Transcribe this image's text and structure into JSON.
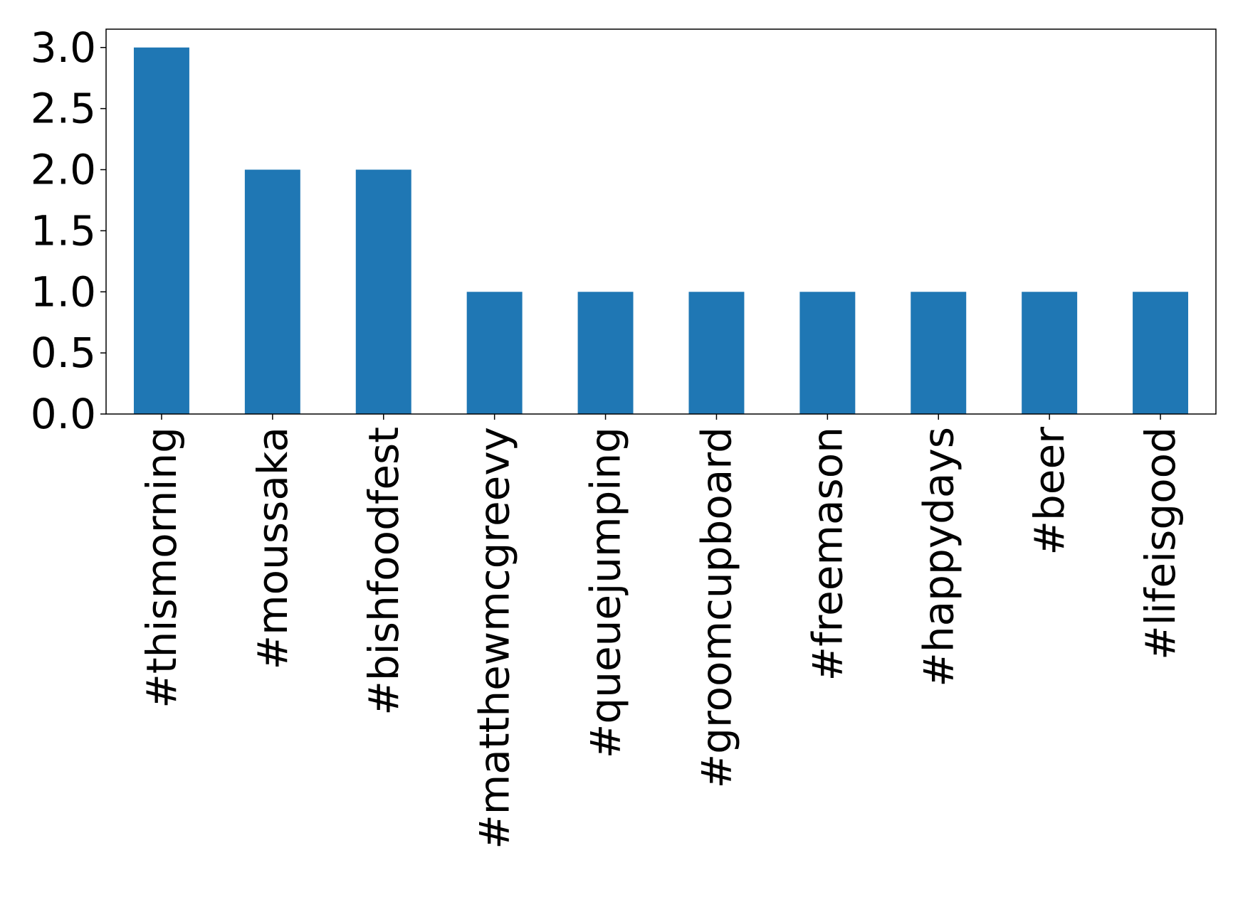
{
  "chart_data": {
    "type": "bar",
    "categories": [
      "#thismorning",
      "#moussaka",
      "#bishfoodfest",
      "#matthewmcgreevy",
      "#queuejumping",
      "#groomcupboard",
      "#freemason",
      "#happydays",
      "#beer",
      "#lifeisgood"
    ],
    "values": [
      3,
      2,
      2,
      1,
      1,
      1,
      1,
      1,
      1,
      1
    ],
    "color": "#1f77b4",
    "ylim": [
      0,
      3.15
    ],
    "yticks": [
      {
        "value": 0,
        "label": "0.0"
      },
      0.5,
      {
        "value": 1,
        "label": "1.0"
      },
      1.5,
      {
        "value": 2,
        "label": "2.0"
      },
      2.5,
      {
        "value": 3,
        "label": "3.0"
      }
    ]
  }
}
